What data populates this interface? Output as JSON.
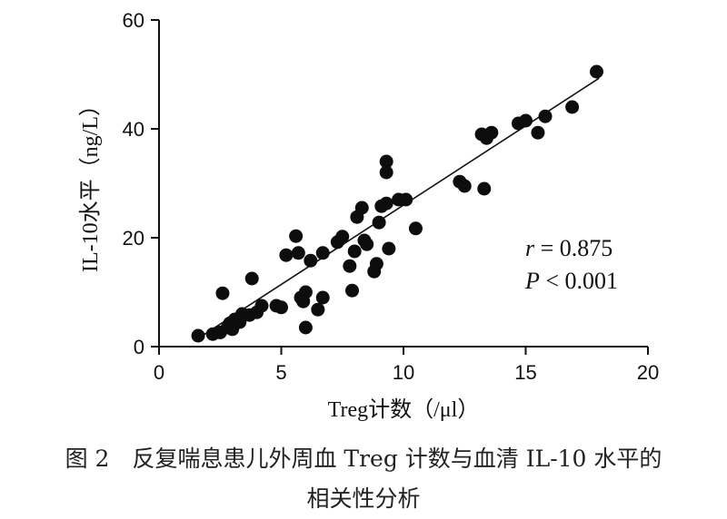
{
  "chart_data": {
    "type": "scatter",
    "xlabel": "Treg计数（/μl）",
    "ylabel": "IL-10水平（ng/L）",
    "xlim": [
      0,
      20
    ],
    "ylim": [
      0,
      60
    ],
    "xticks": [
      "0",
      "5",
      "10",
      "15",
      "20"
    ],
    "yticks": [
      "0",
      "20",
      "40",
      "60"
    ],
    "grid": false,
    "annotation": {
      "r_symbol": "r",
      "r_value": " = 0.875",
      "p_symbol": "P",
      "p_value": " < 0.001"
    },
    "trendline": {
      "x": [
        1.7,
        18.0
      ],
      "y": [
        1.8,
        49.3
      ]
    },
    "points": [
      {
        "x": 1.6,
        "y": 2.0
      },
      {
        "x": 2.2,
        "y": 2.3
      },
      {
        "x": 2.5,
        "y": 2.6
      },
      {
        "x": 2.6,
        "y": 9.8
      },
      {
        "x": 2.8,
        "y": 3.5
      },
      {
        "x": 2.9,
        "y": 4.3
      },
      {
        "x": 3.0,
        "y": 3.2
      },
      {
        "x": 3.1,
        "y": 5.0
      },
      {
        "x": 3.3,
        "y": 4.5
      },
      {
        "x": 3.4,
        "y": 6.0
      },
      {
        "x": 3.7,
        "y": 5.8
      },
      {
        "x": 3.8,
        "y": 12.5
      },
      {
        "x": 4.0,
        "y": 6.3
      },
      {
        "x": 4.2,
        "y": 7.5
      },
      {
        "x": 4.8,
        "y": 7.5
      },
      {
        "x": 5.0,
        "y": 7.2
      },
      {
        "x": 5.2,
        "y": 16.8
      },
      {
        "x": 5.6,
        "y": 20.3
      },
      {
        "x": 5.7,
        "y": 17.2
      },
      {
        "x": 5.8,
        "y": 9.0
      },
      {
        "x": 5.9,
        "y": 8.3
      },
      {
        "x": 6.0,
        "y": 10.0
      },
      {
        "x": 6.0,
        "y": 3.5
      },
      {
        "x": 6.2,
        "y": 15.8
      },
      {
        "x": 6.5,
        "y": 6.8
      },
      {
        "x": 6.7,
        "y": 9.0
      },
      {
        "x": 6.7,
        "y": 17.2
      },
      {
        "x": 7.3,
        "y": 19.2
      },
      {
        "x": 7.5,
        "y": 20.2
      },
      {
        "x": 7.8,
        "y": 14.8
      },
      {
        "x": 7.9,
        "y": 10.3
      },
      {
        "x": 8.0,
        "y": 17.5
      },
      {
        "x": 8.1,
        "y": 23.8
      },
      {
        "x": 8.3,
        "y": 25.5
      },
      {
        "x": 8.4,
        "y": 19.5
      },
      {
        "x": 8.5,
        "y": 18.8
      },
      {
        "x": 8.8,
        "y": 13.8
      },
      {
        "x": 8.9,
        "y": 15.2
      },
      {
        "x": 9.0,
        "y": 22.8
      },
      {
        "x": 9.1,
        "y": 25.8
      },
      {
        "x": 9.3,
        "y": 26.3
      },
      {
        "x": 9.3,
        "y": 34.0
      },
      {
        "x": 9.3,
        "y": 32.0
      },
      {
        "x": 9.4,
        "y": 18.0
      },
      {
        "x": 9.8,
        "y": 27.0
      },
      {
        "x": 10.1,
        "y": 27.0
      },
      {
        "x": 10.5,
        "y": 21.7
      },
      {
        "x": 12.3,
        "y": 30.3
      },
      {
        "x": 12.5,
        "y": 29.5
      },
      {
        "x": 13.2,
        "y": 39.0
      },
      {
        "x": 13.3,
        "y": 29.0
      },
      {
        "x": 13.4,
        "y": 38.3
      },
      {
        "x": 13.6,
        "y": 39.3
      },
      {
        "x": 14.7,
        "y": 41.0
      },
      {
        "x": 15.0,
        "y": 41.5
      },
      {
        "x": 15.5,
        "y": 39.3
      },
      {
        "x": 15.8,
        "y": 42.3
      },
      {
        "x": 16.9,
        "y": 44.0
      },
      {
        "x": 17.9,
        "y": 50.5
      }
    ]
  },
  "caption": {
    "line1": "图 2　反复喘息患儿外周血 Treg 计数与血清 IL-10 水平的",
    "line2": "相关性分析"
  }
}
